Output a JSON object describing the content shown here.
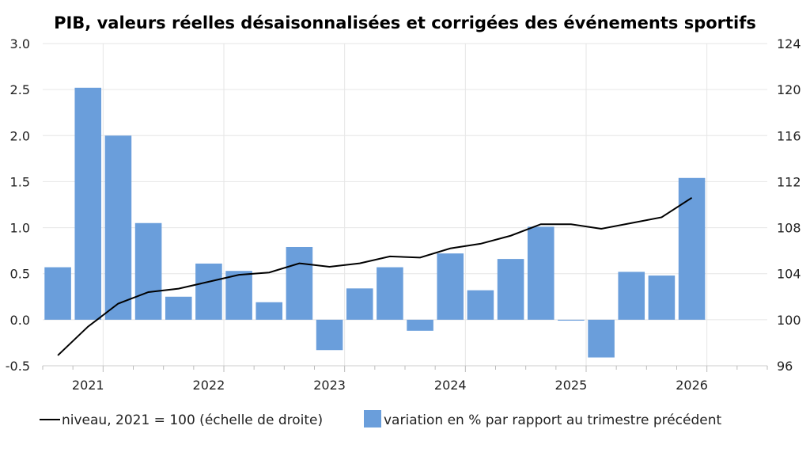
{
  "chart_data": {
    "type": "bar+line",
    "title": "PIB, valeurs réelles désaisonnalisées et corrigées des événements sportifs",
    "x_tick_labels": [
      "2021",
      "2022",
      "2023",
      "2024",
      "2025",
      "2026"
    ],
    "y_left": {
      "ylim": [
        -0.5,
        3.0
      ],
      "ticks": [
        "-0.5",
        "0.0",
        "0.5",
        "1.0",
        "1.5",
        "2.0",
        "2.5",
        "3.0"
      ]
    },
    "y_right": {
      "ylim": [
        96,
        124
      ],
      "ticks": [
        "96",
        "100",
        "104",
        "108",
        "112",
        "116",
        "120",
        "124"
      ]
    },
    "bar_series": {
      "name": "variation en % par rapport au trimestre précédent",
      "color": "#6a9edb",
      "x": [
        "2020-Q3",
        "2020-Q4",
        "2021-Q1",
        "2021-Q2",
        "2021-Q3",
        "2021-Q4",
        "2022-Q1",
        "2022-Q2",
        "2022-Q3",
        "2022-Q4",
        "2023-Q1",
        "2023-Q2",
        "2023-Q3",
        "2023-Q4",
        "2024-Q1",
        "2024-Q2",
        "2024-Q3",
        "2024-Q4",
        "2025-Q1",
        "2025-Q2",
        "2025-Q3",
        "2025-Q4"
      ],
      "values": [
        0.57,
        2.52,
        2.0,
        1.05,
        0.25,
        0.61,
        0.53,
        0.19,
        0.79,
        -0.33,
        0.34,
        0.57,
        -0.12,
        0.72,
        0.32,
        0.66,
        1.01,
        -0.01,
        -0.41,
        0.52,
        0.48,
        1.54
      ]
    },
    "line_series": {
      "name": "niveau, 2021 = 100 (échelle de droite)",
      "color": "#000000",
      "x": [
        "2020-Q3",
        "2020-Q4",
        "2021-Q1",
        "2021-Q2",
        "2021-Q3",
        "2021-Q4",
        "2022-Q1",
        "2022-Q2",
        "2022-Q3",
        "2022-Q4",
        "2023-Q1",
        "2023-Q2",
        "2023-Q3",
        "2023-Q4",
        "2024-Q1",
        "2024-Q2",
        "2024-Q3",
        "2024-Q4",
        "2025-Q1",
        "2025-Q2",
        "2025-Q3",
        "2025-Q4"
      ],
      "values": [
        96.9,
        99.4,
        101.4,
        102.4,
        102.7,
        103.3,
        103.9,
        104.1,
        104.9,
        104.6,
        104.9,
        105.5,
        105.4,
        106.2,
        106.6,
        107.3,
        108.3,
        108.3,
        107.9,
        108.4,
        108.9,
        110.6
      ]
    },
    "grid": true,
    "legend_position": "bottom"
  }
}
